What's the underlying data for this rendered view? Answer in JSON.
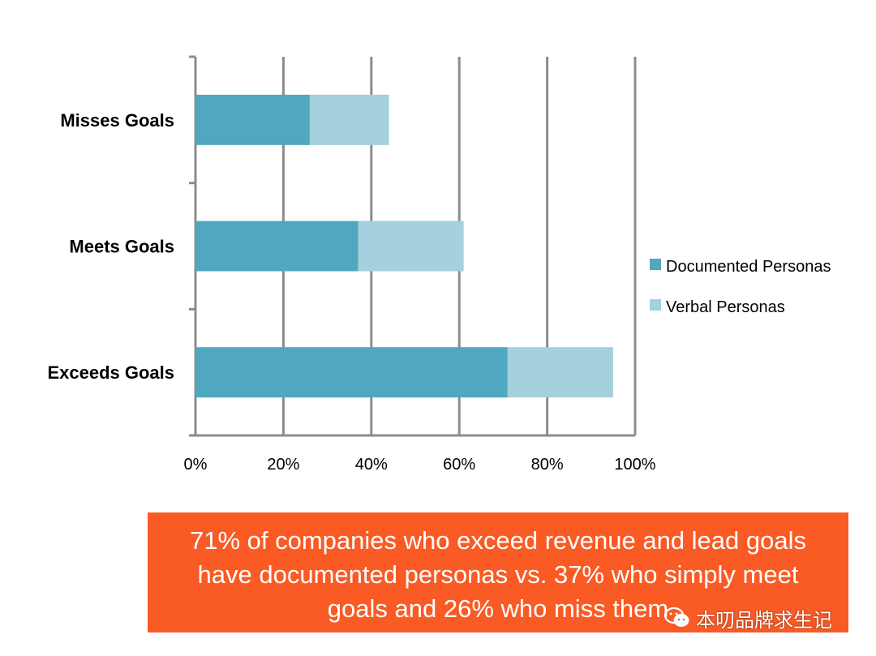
{
  "chart_data": {
    "type": "bar",
    "orientation": "horizontal",
    "stacked": true,
    "categories": [
      "Misses Goals",
      "Meets Goals",
      "Exceeds Goals"
    ],
    "series": [
      {
        "name": "Documented Personas",
        "values": [
          26,
          37,
          71
        ],
        "color": "#4fa8bf"
      },
      {
        "name": "Verbal Personas",
        "values": [
          18,
          24,
          24
        ],
        "color": "#a5d0dd"
      }
    ],
    "xlim": [
      0,
      100
    ],
    "xticks": [
      "0%",
      "20%",
      "40%",
      "60%",
      "80%",
      "100%"
    ],
    "grid": true,
    "legend_position": "right"
  },
  "callout": {
    "text": "71% of companies who exceed revenue and lead goals have documented personas vs. 37% who simply meet goals and 26% who miss them"
  },
  "watermark": {
    "text": "本叨品牌求生记",
    "icon": "wechat-icon"
  }
}
